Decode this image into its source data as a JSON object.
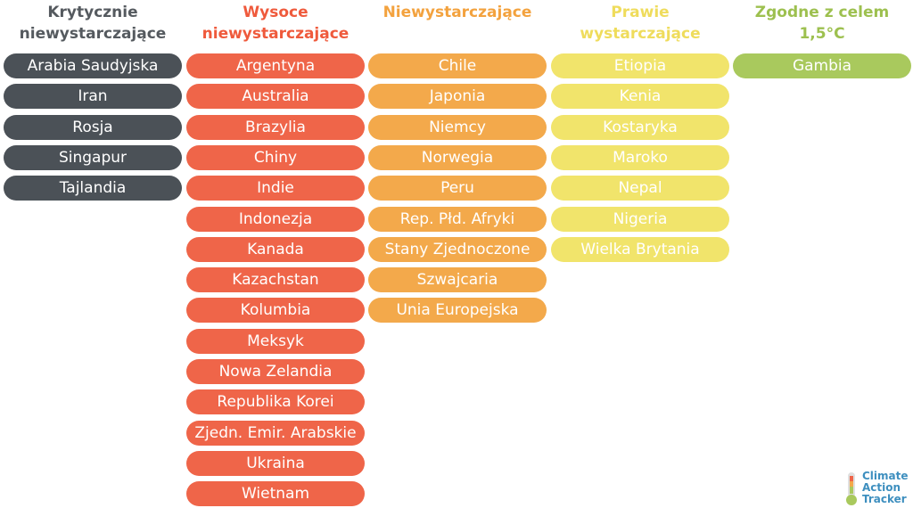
{
  "columns": [
    {
      "title_lines": [
        "Krytycznie",
        "niewystarczające"
      ],
      "color": "#4b5157",
      "title_color": "#555a5f",
      "items": [
        "Arabia Saudyjska",
        "Iran",
        "Rosja",
        "Singapur",
        "Tajlandia"
      ]
    },
    {
      "title_lines": [
        "Wysoce",
        "niewystarczające"
      ],
      "color": "#ef6549",
      "title_color": "#ef5a3c",
      "items": [
        "Argentyna",
        "Australia",
        "Brazylia",
        "Chiny",
        "Indie",
        "Indonezja",
        "Kanada",
        "Kazachstan",
        "Kolumbia",
        "Meksyk",
        "Nowa Zelandia",
        "Republika Korei",
        "Zjedn. Emir. Arabskie",
        "Ukraina",
        "Wietnam"
      ]
    },
    {
      "title_lines": [
        "Niewystarczające"
      ],
      "color": "#f3a94b",
      "title_color": "#f3a23e",
      "items": [
        "Chile",
        "Japonia",
        "Niemcy",
        "Norwegia",
        "Peru",
        "Rep. Płd. Afryki",
        "Stany Zjednoczone",
        "Szwajcaria",
        "Unia Europejska"
      ]
    },
    {
      "title_lines": [
        "Prawie",
        "wystarczające"
      ],
      "color": "#f1e46b",
      "title_color": "#efdc5c",
      "items": [
        "Etiopia",
        "Kenia",
        "Kostaryka",
        "Maroko",
        "Nepal",
        "Nigeria",
        "Wielka Brytania"
      ]
    },
    {
      "title_lines": [
        "Zgodne z celem",
        "1,5°C"
      ],
      "color": "#a9c95d",
      "title_color": "#9dc04f",
      "items": [
        "Gambia"
      ]
    }
  ],
  "logo": {
    "lines": [
      "Climate",
      "Action",
      "Tracker"
    ]
  }
}
